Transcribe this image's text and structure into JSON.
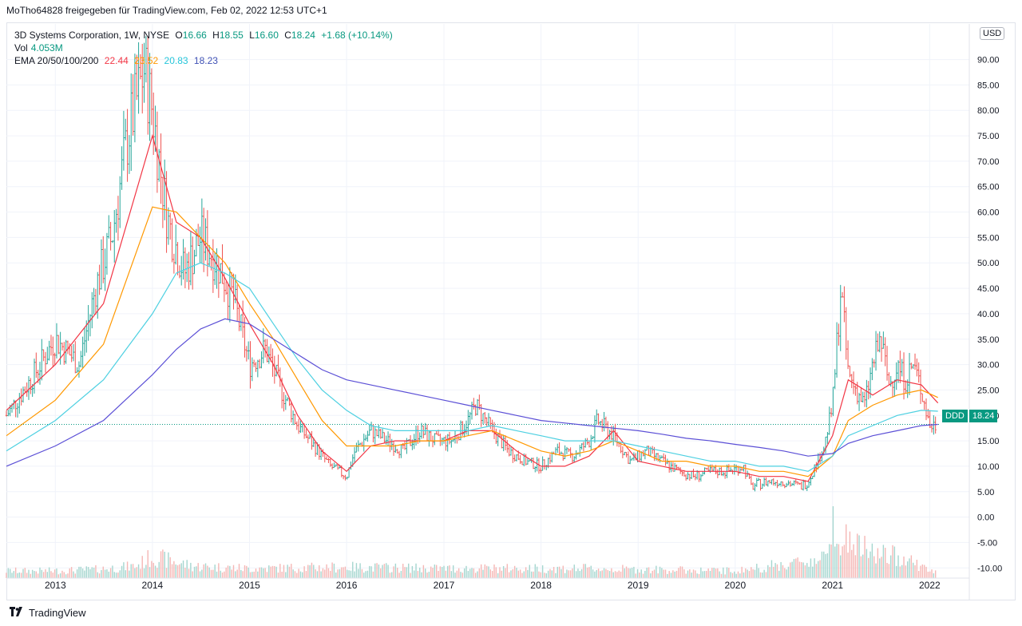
{
  "header": {
    "publisher_line": "MoTho64828 freigegeben für TradingView.com, Feb 02, 2022 12:53 UTC+1"
  },
  "legend": {
    "symbol_line": "3D Systems Corporation, 1W, NYSE",
    "o_label": "O",
    "o_value": "16.66",
    "h_label": "H",
    "h_value": "18.55",
    "l_label": "L",
    "l_value": "16.60",
    "c_label": "C",
    "c_value": "18.24",
    "change": "+1.68 (+10.14%)",
    "vol_label": "Vol",
    "vol_value": "4.053M",
    "ema_label": "EMA 20/50/100/200",
    "ema_values": [
      "22.44",
      "23.52",
      "20.83",
      "18.23"
    ]
  },
  "currency_button": "USD",
  "price_tag": {
    "symbol": "DDD",
    "value": "18.24"
  },
  "footer": {
    "brand": "TradingView",
    "logo_icon": "tradingview-logo-icon"
  },
  "colors": {
    "up": "#26a69a",
    "down": "#ef5350",
    "ema20": "#f23645",
    "ema50": "#ff9800",
    "ema100": "#4dd0e1",
    "ema200": "#5b4fd6",
    "accent": "#089981"
  },
  "chart_data": {
    "type": "line",
    "title": "3D Systems Corporation, 1W, NYSE",
    "ylim": [
      -12,
      97
    ],
    "y_ticks": [
      90,
      85,
      80,
      75,
      70,
      65,
      60,
      55,
      50,
      45,
      40,
      35,
      30,
      25,
      20,
      15,
      10,
      5,
      0,
      -5,
      -10
    ],
    "y_tick_labels": [
      "90.00",
      "85.00",
      "80.00",
      "75.00",
      "70.00",
      "65.00",
      "60.00",
      "55.00",
      "50.00",
      "45.00",
      "40.00",
      "35.00",
      "30.00",
      "25.00",
      "20.00",
      "15.00",
      "10.00",
      "5.00",
      "0.00",
      "-5.00",
      "-10.00"
    ],
    "x_range": [
      "2012-07-01",
      "2022-02-02"
    ],
    "x_ticks": [
      "2013",
      "2014",
      "2015",
      "2016",
      "2017",
      "2018",
      "2019",
      "2020",
      "2021",
      "2022"
    ],
    "last_price": 18.24,
    "grid": true,
    "price_series": {
      "name": "DDD",
      "x": [
        "2012-07",
        "2012-10",
        "2013-01",
        "2013-04",
        "2013-06",
        "2013-08",
        "2013-10",
        "2013-12",
        "2014-01",
        "2014-02",
        "2014-03",
        "2014-05",
        "2014-07",
        "2014-09",
        "2014-11",
        "2015-01",
        "2015-03",
        "2015-05",
        "2015-07",
        "2015-09",
        "2015-11",
        "2016-01",
        "2016-02",
        "2016-04",
        "2016-06",
        "2016-08",
        "2016-10",
        "2016-12",
        "2017-02",
        "2017-04",
        "2017-05",
        "2017-07",
        "2017-09",
        "2017-11",
        "2018-01",
        "2018-03",
        "2018-05",
        "2018-07",
        "2018-08",
        "2018-10",
        "2018-12",
        "2019-02",
        "2019-04",
        "2019-06",
        "2019-08",
        "2019-10",
        "2019-12",
        "2020-02",
        "2020-03",
        "2020-05",
        "2020-07",
        "2020-09",
        "2020-10",
        "2020-12",
        "2021-01",
        "2021-02",
        "2021-03",
        "2021-05",
        "2021-06",
        "2021-07",
        "2021-08",
        "2021-09",
        "2021-10",
        "2021-11",
        "2021-12",
        "2022-01",
        "2022-02"
      ],
      "values": [
        20,
        27,
        35,
        30,
        45,
        55,
        75,
        88,
        80,
        68,
        58,
        48,
        55,
        50,
        43,
        30,
        33,
        25,
        18,
        14,
        10,
        8,
        13,
        17,
        15,
        13,
        17,
        15,
        15,
        19,
        22,
        17,
        13,
        11,
        10,
        13,
        12,
        15,
        19,
        16,
        11,
        13,
        11,
        9,
        8,
        9,
        9,
        10,
        6,
        7,
        7,
        6,
        7,
        14,
        22,
        45,
        28,
        22,
        30,
        35,
        26,
        30,
        27,
        30,
        25,
        18,
        18.24
      ]
    },
    "series": [
      {
        "name": "EMA 20",
        "x": [
          "2012-07",
          "2013-01",
          "2013-07",
          "2014-01",
          "2014-04",
          "2014-07",
          "2014-10",
          "2015-01",
          "2015-04",
          "2015-07",
          "2015-10",
          "2016-01",
          "2016-04",
          "2016-07",
          "2016-10",
          "2017-01",
          "2017-04",
          "2017-07",
          "2017-10",
          "2018-01",
          "2018-04",
          "2018-07",
          "2018-10",
          "2019-01",
          "2019-04",
          "2019-07",
          "2019-10",
          "2020-01",
          "2020-04",
          "2020-07",
          "2020-10",
          "2021-01",
          "2021-03",
          "2021-06",
          "2021-09",
          "2021-12",
          "2022-02"
        ],
        "values": [
          21,
          30,
          42,
          75,
          58,
          55,
          47,
          38,
          30,
          20,
          13,
          9,
          14,
          15,
          15,
          15,
          17,
          17,
          13,
          10,
          10,
          12,
          17,
          11,
          10,
          9,
          9,
          9,
          8,
          8,
          7,
          16,
          27,
          24,
          27,
          26,
          22.44
        ]
      },
      {
        "name": "EMA 50",
        "x": [
          "2012-07",
          "2013-01",
          "2013-07",
          "2014-01",
          "2014-04",
          "2014-07",
          "2014-10",
          "2015-01",
          "2015-04",
          "2015-07",
          "2015-10",
          "2016-01",
          "2016-04",
          "2016-07",
          "2016-10",
          "2017-01",
          "2017-04",
          "2017-07",
          "2017-10",
          "2018-01",
          "2018-04",
          "2018-07",
          "2018-10",
          "2019-01",
          "2019-04",
          "2019-07",
          "2019-10",
          "2020-01",
          "2020-04",
          "2020-07",
          "2020-10",
          "2021-01",
          "2021-03",
          "2021-06",
          "2021-09",
          "2021-12",
          "2022-02"
        ],
        "values": [
          16,
          23,
          34,
          61,
          60,
          55,
          50,
          42,
          35,
          27,
          19,
          14,
          14,
          14,
          15,
          15,
          16,
          17,
          15,
          13,
          12,
          13,
          15,
          13,
          11,
          11,
          10,
          10,
          9,
          9,
          8,
          12,
          19,
          22,
          24,
          25,
          23.52
        ]
      },
      {
        "name": "EMA 100",
        "x": [
          "2012-07",
          "2013-01",
          "2013-07",
          "2014-01",
          "2014-04",
          "2014-07",
          "2014-10",
          "2015-01",
          "2015-04",
          "2015-07",
          "2015-10",
          "2016-01",
          "2016-04",
          "2016-07",
          "2016-10",
          "2017-01",
          "2017-04",
          "2017-07",
          "2017-10",
          "2018-01",
          "2018-04",
          "2018-07",
          "2018-10",
          "2019-01",
          "2019-04",
          "2019-07",
          "2019-10",
          "2020-01",
          "2020-04",
          "2020-07",
          "2020-10",
          "2021-01",
          "2021-03",
          "2021-06",
          "2021-09",
          "2021-12",
          "2022-02"
        ],
        "values": [
          13,
          19,
          27,
          40,
          48,
          50,
          48,
          45,
          38,
          31,
          25,
          21,
          18,
          17,
          17,
          17,
          17,
          18,
          17,
          16,
          15,
          15,
          15,
          14,
          13,
          12,
          11,
          11,
          10,
          10,
          9,
          12,
          16,
          18,
          20,
          21,
          20.83
        ]
      },
      {
        "name": "EMA 200",
        "x": [
          "2012-07",
          "2013-01",
          "2013-07",
          "2014-01",
          "2014-04",
          "2014-07",
          "2014-10",
          "2015-01",
          "2015-04",
          "2015-07",
          "2015-10",
          "2016-01",
          "2016-04",
          "2016-07",
          "2016-10",
          "2017-01",
          "2017-04",
          "2017-07",
          "2017-10",
          "2018-01",
          "2018-04",
          "2018-07",
          "2018-10",
          "2019-01",
          "2019-04",
          "2019-07",
          "2019-10",
          "2020-01",
          "2020-04",
          "2020-07",
          "2020-10",
          "2021-01",
          "2021-03",
          "2021-06",
          "2021-09",
          "2021-12",
          "2022-02"
        ],
        "values": [
          10,
          14,
          19,
          28,
          33,
          37,
          39,
          38,
          35,
          32,
          29,
          27,
          26,
          25,
          24,
          23,
          22,
          21,
          20,
          19,
          18.5,
          18,
          17.5,
          17,
          16.3,
          15.5,
          15,
          14.3,
          13.7,
          13,
          12,
          12.5,
          14.5,
          16,
          17,
          18,
          18.23
        ]
      }
    ],
    "volume": {
      "x": [
        "2013-01",
        "2013-06",
        "2013-11",
        "2014-01",
        "2014-06",
        "2015-01",
        "2016-01",
        "2017-01",
        "2018-06",
        "2019-01",
        "2020-01",
        "2020-12",
        "2021-01",
        "2021-02",
        "2021-05",
        "2021-07",
        "2021-10",
        "2022-01"
      ],
      "values": [
        1.5,
        1.8,
        2.5,
        4.5,
        2.5,
        2,
        2.3,
        2,
        2,
        1.8,
        1.5,
        4,
        14,
        8.5,
        6,
        4.8,
        4.4,
        1.4
      ]
    }
  }
}
